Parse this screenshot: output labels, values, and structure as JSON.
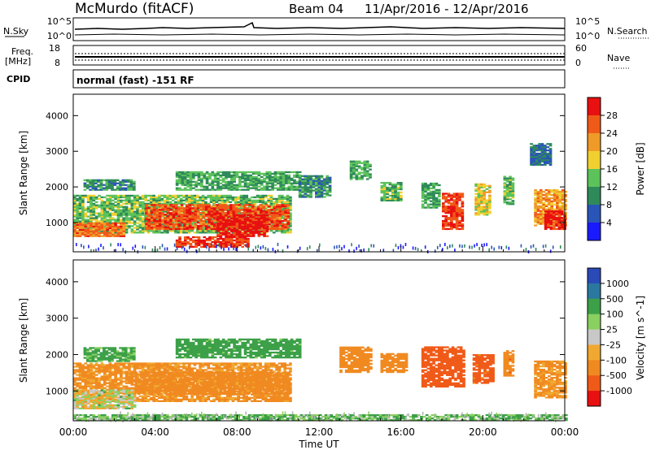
{
  "header": {
    "station": "McMurdo (fitACF)",
    "beam": "Beam 04",
    "dates": "11/Apr/2016 - 12/Apr/2016"
  },
  "aux_panel": {
    "left_top_label": "N.Sky",
    "left_top_ticks": [
      "10^5",
      "10^0"
    ],
    "right_top_label": "N.Search",
    "right_top_ticks": [
      "10^5",
      "10^0"
    ],
    "freq_label": "Freq.",
    "freq_unit": "[MHz]",
    "freq_ticks": [
      "18",
      "8"
    ],
    "nave_label": "Nave",
    "nave_ticks": [
      "60",
      "0"
    ],
    "cpid_label": "CPID",
    "mode_text": "normal (fast) -151 RF"
  },
  "colors": {
    "power": [
      "#1a1aff",
      "#2a55b8",
      "#2f8a5a",
      "#5cc25a",
      "#f0d030",
      "#f09a28",
      "#f05a18",
      "#e81010"
    ],
    "velocity": [
      "#e81010",
      "#f05a18",
      "#f08a20",
      "#f0a830",
      "#c8c8c8",
      "#8ad060",
      "#3ca048",
      "#2a78a0",
      "#2a4ab8"
    ],
    "ground_scatter": "#b4b4b4"
  },
  "chart_data": [
    {
      "type": "heatmap",
      "panel": "power",
      "ylabel": "Slant Range [km]",
      "x_ticks": [
        "00:00",
        "04:00",
        "08:00",
        "12:00",
        "16:00",
        "20:00",
        "00:00"
      ],
      "y_ticks": [
        "1000",
        "2000",
        "3000",
        "4000"
      ],
      "ylim": [
        180,
        4600
      ],
      "colorbar_label": "Power [dB]",
      "colorbar_ticks": [
        "4",
        "8",
        "12",
        "16",
        "20",
        "24",
        "28"
      ],
      "clim": [
        0,
        32
      ],
      "regions": [
        {
          "t0": 0.0,
          "t1": 10.6,
          "r0": 700,
          "r1": 1750,
          "value": 14
        },
        {
          "t0": 3.5,
          "t1": 10.5,
          "r0": 800,
          "r1": 1500,
          "value": 27
        },
        {
          "t0": 7.0,
          "t1": 9.5,
          "r0": 600,
          "r1": 1200,
          "value": 30
        },
        {
          "t0": 5.0,
          "t1": 8.5,
          "r0": 300,
          "r1": 600,
          "value": 28
        },
        {
          "t0": 0.0,
          "t1": 2.5,
          "r0": 600,
          "r1": 1000,
          "value": 25
        },
        {
          "t0": 0.5,
          "t1": 3.0,
          "r0": 1900,
          "r1": 2200,
          "value": 10
        },
        {
          "t0": 5.0,
          "t1": 11.0,
          "r0": 1900,
          "r1": 2400,
          "value": 12
        },
        {
          "t0": 11.0,
          "t1": 12.5,
          "r0": 1700,
          "r1": 2300,
          "value": 10
        },
        {
          "t0": 13.5,
          "t1": 14.5,
          "r0": 2200,
          "r1": 2700,
          "value": 12
        },
        {
          "t0": 15.0,
          "t1": 16.0,
          "r0": 1600,
          "r1": 2100,
          "value": 14
        },
        {
          "t0": 17.0,
          "t1": 17.8,
          "r0": 1400,
          "r1": 2100,
          "value": 12
        },
        {
          "t0": 18.0,
          "t1": 19.0,
          "r0": 800,
          "r1": 1800,
          "value": 28
        },
        {
          "t0": 19.6,
          "t1": 20.3,
          "r0": 1200,
          "r1": 2100,
          "value": 18
        },
        {
          "t0": 21.0,
          "t1": 21.5,
          "r0": 1500,
          "r1": 2300,
          "value": 14
        },
        {
          "t0": 22.5,
          "t1": 24.0,
          "r0": 900,
          "r1": 1900,
          "value": 22
        },
        {
          "t0": 23.0,
          "t1": 24.0,
          "r0": 800,
          "r1": 1300,
          "value": 30
        },
        {
          "t0": 22.3,
          "t1": 23.3,
          "r0": 2600,
          "r1": 3200,
          "value": 8
        }
      ]
    },
    {
      "type": "heatmap",
      "panel": "velocity",
      "ylabel": "Slant Range [km]",
      "xlabel": "Time UT",
      "x_ticks": [
        "00:00",
        "04:00",
        "08:00",
        "12:00",
        "16:00",
        "20:00",
        "00:00"
      ],
      "y_ticks": [
        "1000",
        "2000",
        "3000",
        "4000"
      ],
      "ylim": [
        180,
        4600
      ],
      "colorbar_label": "Velocity [m s^-1]",
      "colorbar_ticks": [
        "1000",
        "500",
        "100",
        "25",
        "-25",
        "-100",
        "-500",
        "-1000"
      ],
      "regions": [
        {
          "t0": 0.0,
          "t1": 10.6,
          "r0": 700,
          "r1": 1750,
          "value": -150
        },
        {
          "t0": 0.0,
          "t1": 3.0,
          "r0": 500,
          "r1": 1000,
          "value": 0
        },
        {
          "t0": 3.0,
          "t1": 10.5,
          "r0": 900,
          "r1": 1500,
          "value": -200
        },
        {
          "t0": 0.5,
          "t1": 3.0,
          "r0": 1800,
          "r1": 2200,
          "value": 150
        },
        {
          "t0": 5.0,
          "t1": 11.0,
          "r0": 1900,
          "r1": 2400,
          "value": 200
        },
        {
          "t0": 13.0,
          "t1": 14.5,
          "r0": 1500,
          "r1": 2200,
          "value": -300
        },
        {
          "t0": 15.0,
          "t1": 16.2,
          "r0": 1500,
          "r1": 2000,
          "value": -300
        },
        {
          "t0": 17.0,
          "t1": 19.0,
          "r0": 1100,
          "r1": 2200,
          "value": -800
        },
        {
          "t0": 19.5,
          "t1": 20.5,
          "r0": 1200,
          "r1": 2000,
          "value": -600
        },
        {
          "t0": 21.0,
          "t1": 21.5,
          "r0": 1400,
          "r1": 2100,
          "value": -400
        },
        {
          "t0": 22.5,
          "t1": 24.0,
          "r0": 800,
          "r1": 1800,
          "value": -150
        },
        {
          "t0": 0.0,
          "t1": 24.0,
          "r0": 180,
          "r1": 320,
          "value": 120
        }
      ]
    }
  ]
}
